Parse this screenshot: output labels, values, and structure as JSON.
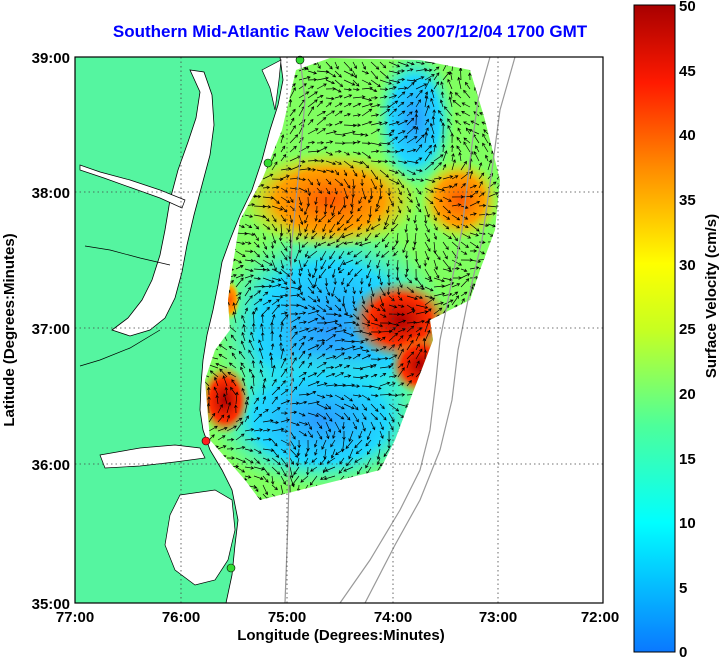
{
  "title": "Southern Mid-Atlantic Raw Velocities 2007/12/04 1700 GMT",
  "x_axis": {
    "label": "Longitude (Degrees:Minutes)",
    "ticks": [
      "77:00",
      "76:00",
      "75:00",
      "74:00",
      "73:00",
      "72:00"
    ]
  },
  "y_axis": {
    "label": "Latitude (Degrees:Minutes)",
    "ticks": [
      "39:00",
      "38:00",
      "37:00",
      "36:00",
      "35:00"
    ]
  },
  "colorbar": {
    "label": "Surface Velocity (cm/s)",
    "ticks": [
      "50",
      "45",
      "40",
      "35",
      "30",
      "25",
      "20",
      "15",
      "10",
      "5",
      "0"
    ],
    "range": [
      0,
      50
    ]
  },
  "colors": {
    "land": "#55f5a0",
    "water": "#ffffff",
    "title": "#0000ff",
    "site_marker": "#33dd33",
    "site_marker_active": "#ff2020"
  },
  "map_extent": {
    "lon": [
      -77,
      -72
    ],
    "lat": [
      35,
      39
    ]
  }
}
